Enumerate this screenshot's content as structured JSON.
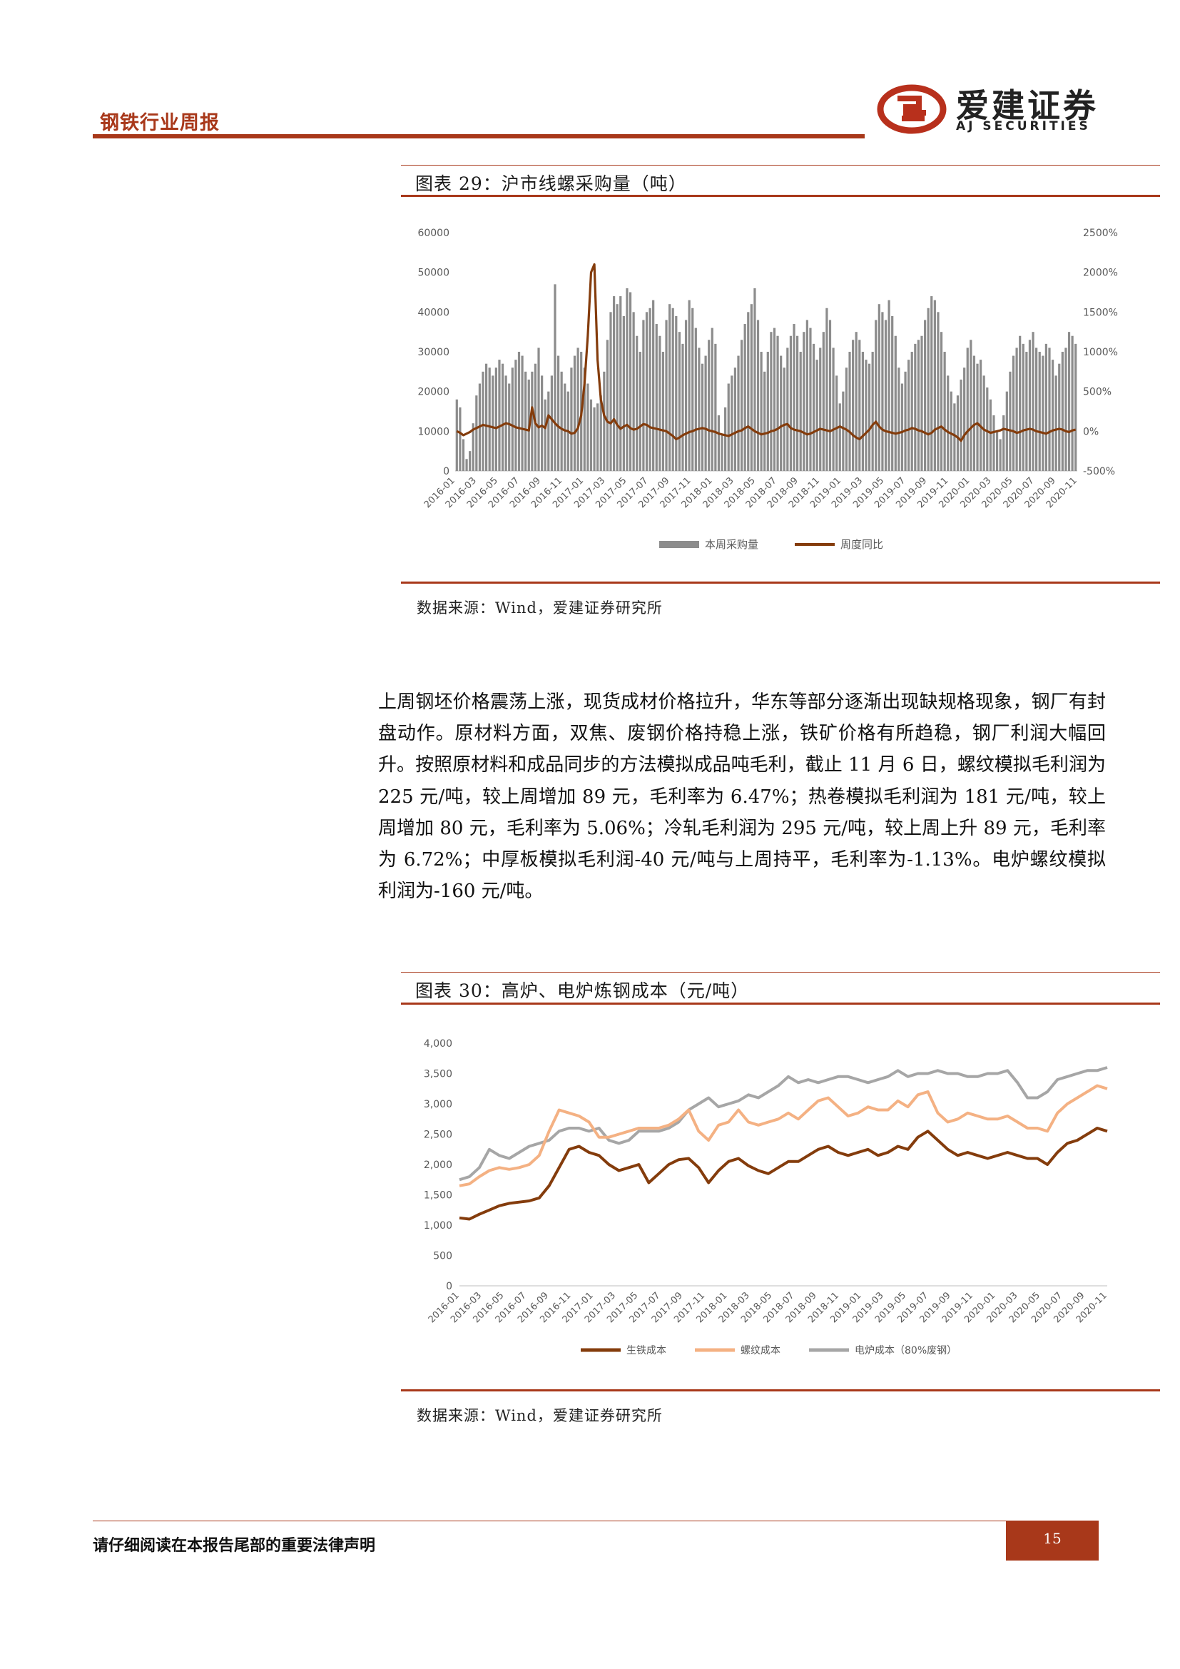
{
  "header": {
    "report_title": "钢铁行业周报",
    "logo_cn": "爱建证券",
    "logo_en": "AJ SECURITIES"
  },
  "figure1": {
    "title": "图表 29：沪市线螺采购量（吨）",
    "source": "数据来源：Wind，爱建证券研究所"
  },
  "figure2": {
    "title": "图表 30：高炉、电炉炼钢成本（元/吨）",
    "source": "数据来源：Wind，爱建证券研究所"
  },
  "body": {
    "paragraph": "上周钢坯价格震荡上涨，现货成材价格拉升，华东等部分逐渐出现缺规格现象，钢厂有封盘动作。原材料方面，双焦、废钢价格持稳上涨，铁矿价格有所趋稳，钢厂利润大幅回升。按照原材料和成品同步的方法模拟成品吨毛利，截止 11 月 6 日，螺纹模拟毛利润为 225 元/吨，较上周增加 89 元，毛利率为 6.47%；热卷模拟毛利润为 181 元/吨，较上周增加 80 元，毛利率为 5.06%；冷轧毛利润为 295 元/吨，较上周上升 89 元，毛利率为 6.72%；中厚板模拟毛利润-40 元/吨与上周持平，毛利率为-1.13%。电炉螺纹模拟利润为-160 元/吨。"
  },
  "footer": {
    "disclaimer": "请仔细阅读在本报告尾部的重要法律声明",
    "page_number": "15"
  },
  "colors": {
    "brand": "#a8381a",
    "bar_gray": "#8c8c8c",
    "pig_iron": "#843c0c",
    "rebar": "#f4b183",
    "eaf": "#a6a6a6"
  },
  "chart_data": [
    {
      "type": "bar",
      "x_tick_labels": [
        "2016-01",
        "2016-03",
        "2016-05",
        "2016-07",
        "2016-09",
        "2016-11",
        "2017-01",
        "2017-03",
        "2017-05",
        "2017-07",
        "2017-09",
        "2017-11",
        "2018-01",
        "2018-03",
        "2018-05",
        "2018-07",
        "2018-09",
        "2018-11",
        "2019-01",
        "2019-03",
        "2019-05",
        "2019-07",
        "2019-09",
        "2019-11",
        "2020-01",
        "2020-03",
        "2020-05",
        "2020-07",
        "2020-09",
        "2020-11"
      ],
      "y_left_ticks": [
        "0",
        "10000",
        "20000",
        "30000",
        "40000",
        "50000",
        "60000"
      ],
      "y_right_ticks": [
        "-500%",
        "0%",
        "500%",
        "1000%",
        "1500%",
        "2000%",
        "2500%"
      ],
      "ylim_left": [
        0,
        60000
      ],
      "ylim_right": [
        -500,
        2500
      ],
      "legend_position": "bottom",
      "series": [
        {
          "name": "本周采购量",
          "kind": "bar",
          "axis": "left",
          "values": [
            18000,
            16000,
            8000,
            3000,
            5000,
            12000,
            19000,
            22000,
            25000,
            27000,
            26000,
            24000,
            26000,
            28000,
            27000,
            24000,
            22000,
            26000,
            28000,
            30000,
            29000,
            25000,
            23000,
            25000,
            27000,
            31000,
            24000,
            18000,
            20000,
            24000,
            47000,
            29000,
            25000,
            22000,
            20000,
            26000,
            29000,
            31000,
            30000,
            26000,
            22000,
            18000,
            16000,
            17000,
            19000,
            25000,
            33000,
            40000,
            44000,
            42000,
            44000,
            39000,
            46000,
            45000,
            40000,
            34000,
            30000,
            38000,
            40000,
            41000,
            43000,
            37000,
            34000,
            30000,
            38000,
            42000,
            41000,
            39000,
            35000,
            32000,
            38000,
            43000,
            41000,
            36000,
            31000,
            27000,
            29000,
            33000,
            36000,
            32000,
            14000,
            9000,
            16000,
            22000,
            24000,
            26000,
            29000,
            33000,
            37000,
            40000,
            42000,
            46000,
            38000,
            30000,
            25000,
            30000,
            35000,
            36000,
            34000,
            29000,
            26000,
            31000,
            34000,
            37000,
            34000,
            30000,
            35000,
            38000,
            36000,
            32000,
            28000,
            31000,
            35000,
            41000,
            38000,
            31000,
            24000,
            17000,
            20000,
            26000,
            30000,
            33000,
            35000,
            33000,
            30000,
            28000,
            27000,
            30000,
            38000,
            42000,
            40000,
            38000,
            43000,
            39000,
            34000,
            26000,
            22000,
            25000,
            28000,
            30000,
            32000,
            33000,
            34000,
            38000,
            41000,
            44000,
            43000,
            40000,
            35000,
            30000,
            24000,
            20000,
            17000,
            19000,
            23000,
            26000,
            31000,
            33000,
            29000,
            27000,
            28000,
            24000,
            21000,
            18000,
            14000,
            10000,
            8000,
            14000,
            20000,
            25000,
            29000,
            31000,
            34000,
            32000,
            30000,
            33000,
            35000,
            31000,
            30000,
            29000,
            32000,
            31000,
            28000,
            24000,
            27000,
            30000,
            31000,
            35000,
            34000,
            32000
          ]
        },
        {
          "name": "周度同比",
          "kind": "line",
          "axis": "right",
          "values": [
            0,
            -20,
            -50,
            -30,
            -10,
            20,
            40,
            60,
            80,
            70,
            60,
            50,
            40,
            60,
            80,
            100,
            90,
            70,
            50,
            40,
            30,
            20,
            10,
            300,
            100,
            50,
            70,
            40,
            200,
            150,
            100,
            60,
            30,
            10,
            0,
            -30,
            -20,
            40,
            200,
            600,
            1200,
            2000,
            2100,
            900,
            400,
            200,
            120,
            100,
            150,
            80,
            30,
            60,
            80,
            40,
            20,
            30,
            60,
            90,
            80,
            50,
            40,
            30,
            20,
            10,
            0,
            -30,
            -60,
            -100,
            -80,
            -50,
            -30,
            -10,
            0,
            20,
            30,
            40,
            30,
            10,
            0,
            -10,
            -30,
            -40,
            -50,
            -60,
            -40,
            -20,
            0,
            10,
            40,
            60,
            30,
            0,
            -20,
            -40,
            -30,
            -20,
            0,
            10,
            30,
            60,
            80,
            90,
            40,
            20,
            10,
            0,
            -20,
            -40,
            -30,
            -10,
            10,
            30,
            20,
            10,
            0,
            20,
            40,
            60,
            40,
            20,
            -10,
            -50,
            -80,
            -100,
            -60,
            -20,
            20,
            80,
            120,
            60,
            20,
            0,
            -10,
            -20,
            -30,
            -20,
            -10,
            10,
            20,
            40,
            30,
            10,
            0,
            -20,
            -40,
            -20,
            20,
            40,
            60,
            20,
            -10,
            -30,
            -50,
            -80,
            -120,
            -50,
            0,
            40,
            80,
            100,
            60,
            20,
            0,
            -20,
            -10,
            0,
            10,
            30,
            20,
            10,
            0,
            -20,
            -10,
            10,
            20,
            30,
            20,
            0,
            -10,
            -20,
            -30,
            -10,
            10,
            20,
            30,
            20,
            0,
            -10,
            10,
            20
          ]
        }
      ]
    },
    {
      "type": "line",
      "x_tick_labels": [
        "2016-01",
        "2016-03",
        "2016-05",
        "2016-07",
        "2016-09",
        "2016-11",
        "2017-01",
        "2017-03",
        "2017-05",
        "2017-07",
        "2017-09",
        "2017-11",
        "2018-01",
        "2018-03",
        "2018-05",
        "2018-07",
        "2018-09",
        "2018-11",
        "2019-01",
        "2019-03",
        "2019-05",
        "2019-07",
        "2019-09",
        "2019-11",
        "2020-01",
        "2020-03",
        "2020-05",
        "2020-07",
        "2020-09",
        "2020-11"
      ],
      "y_ticks": [
        "0",
        "500",
        "1,000",
        "1,500",
        "2,000",
        "2,500",
        "3,000",
        "3,500",
        "4,000"
      ],
      "ylim": [
        0,
        4000
      ],
      "legend_position": "bottom",
      "series": [
        {
          "name": "生铁成本",
          "color_key": "pig_iron",
          "values": [
            1120,
            1100,
            1180,
            1250,
            1320,
            1360,
            1380,
            1400,
            1450,
            1650,
            1950,
            2250,
            2300,
            2200,
            2150,
            2000,
            1900,
            1950,
            2000,
            1700,
            1850,
            2000,
            2080,
            2100,
            1950,
            1700,
            1900,
            2050,
            2100,
            1980,
            1900,
            1850,
            1950,
            2050,
            2050,
            2150,
            2250,
            2300,
            2200,
            2150,
            2200,
            2250,
            2150,
            2200,
            2300,
            2250,
            2450,
            2550,
            2400,
            2250,
            2150,
            2200,
            2150,
            2100,
            2150,
            2200,
            2150,
            2100,
            2100,
            2000,
            2200,
            2350,
            2400,
            2500,
            2600,
            2550
          ]
        },
        {
          "name": "螺纹成本",
          "color_key": "rebar",
          "values": [
            1650,
            1680,
            1800,
            1900,
            1950,
            1920,
            1950,
            2000,
            2150,
            2550,
            2900,
            2850,
            2800,
            2700,
            2450,
            2450,
            2500,
            2550,
            2600,
            2600,
            2600,
            2650,
            2750,
            2900,
            2550,
            2400,
            2650,
            2700,
            2900,
            2700,
            2650,
            2700,
            2750,
            2850,
            2750,
            2900,
            3050,
            3100,
            2950,
            2800,
            2850,
            2950,
            2900,
            2900,
            3050,
            2950,
            3150,
            3200,
            2850,
            2700,
            2750,
            2850,
            2800,
            2750,
            2750,
            2800,
            2700,
            2600,
            2600,
            2550,
            2850,
            3000,
            3100,
            3200,
            3300,
            3250
          ]
        },
        {
          "name": "电炉成本（80%废钢）",
          "color_key": "eaf",
          "values": [
            1750,
            1800,
            1950,
            2250,
            2150,
            2100,
            2200,
            2300,
            2350,
            2400,
            2550,
            2600,
            2600,
            2550,
            2600,
            2400,
            2350,
            2400,
            2550,
            2550,
            2550,
            2600,
            2700,
            2900,
            3000,
            3100,
            2950,
            3000,
            3050,
            3150,
            3100,
            3200,
            3300,
            3450,
            3350,
            3400,
            3350,
            3400,
            3450,
            3450,
            3400,
            3350,
            3400,
            3450,
            3550,
            3450,
            3500,
            3500,
            3550,
            3500,
            3500,
            3450,
            3450,
            3500,
            3500,
            3550,
            3350,
            3100,
            3100,
            3200,
            3400,
            3450,
            3500,
            3550,
            3550,
            3600
          ]
        }
      ]
    }
  ]
}
